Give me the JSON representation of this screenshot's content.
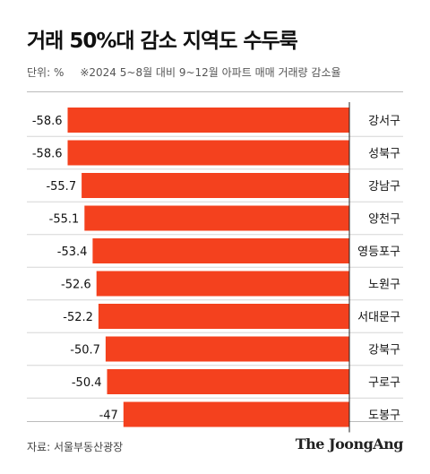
{
  "header": {
    "title": "거래 50%대 감소 지역도 수두룩",
    "unit": "단위: %",
    "note": "※2024 5~8월 대비 9~12월 아파트 매매 거래량 감소율"
  },
  "footer": {
    "source": "자료: 서울부동산광장",
    "brand": "The JoongAng"
  },
  "colors": {
    "bar": "#F4411E",
    "text": "#111111"
  },
  "chart_data": {
    "type": "bar",
    "orientation": "horizontal",
    "categories": [
      "강서구",
      "성북구",
      "강남구",
      "양천구",
      "영등포구",
      "노원구",
      "서대문구",
      "강북구",
      "구로구",
      "도봉구"
    ],
    "values": [
      -58.6,
      -58.6,
      -55.7,
      -55.1,
      -53.4,
      -52.6,
      -52.2,
      -50.7,
      -50.4,
      -47
    ],
    "data_labels": [
      "-58.6",
      "-58.6",
      "-55.7",
      "-55.1",
      "-53.4",
      "-52.6",
      "-52.2",
      "-50.7",
      "-50.4",
      "-47"
    ],
    "title": "거래 50%대 감소 지역도 수두룩",
    "xlabel": "",
    "ylabel": "",
    "xlim": [
      -60,
      0
    ],
    "grid": false,
    "legend": "none"
  }
}
